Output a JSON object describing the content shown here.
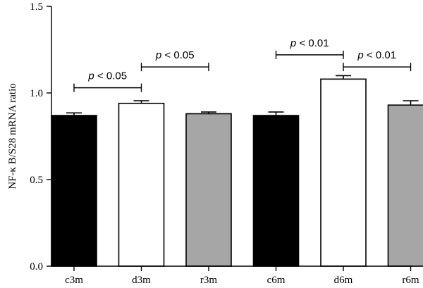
{
  "chart_data": {
    "type": "bar",
    "categories": [
      "c3m",
      "d3m",
      "r3m",
      "c6m",
      "d6m",
      "r6m"
    ],
    "values": [
      0.87,
      0.94,
      0.88,
      0.87,
      1.08,
      0.93
    ],
    "errors": [
      0.015,
      0.015,
      0.01,
      0.02,
      0.02,
      0.025
    ],
    "bar_colors": [
      "#000000",
      "#ffffff",
      "#a6a6a6",
      "#000000",
      "#ffffff",
      "#a6a6a6"
    ],
    "ylabel": "NF-κ B/S28 mRNA ratio",
    "ylim": [
      0,
      1.5
    ],
    "yticks": [
      "0.0",
      "0.5",
      "1.0",
      "1.5"
    ],
    "grid": false,
    "significance": [
      {
        "from": "c3m",
        "to": "d3m",
        "level": 1.03,
        "p_symbol": "p",
        "text": " < 0.05"
      },
      {
        "from": "d3m",
        "to": "r3m",
        "level": 1.15,
        "p_symbol": "p",
        "text": " < 0.05"
      },
      {
        "from": "c6m",
        "to": "d6m",
        "level": 1.22,
        "p_symbol": "p",
        "text": " < 0.01"
      },
      {
        "from": "d6m",
        "to": "r6m",
        "level": 1.15,
        "p_symbol": "p",
        "text": " < 0.01"
      }
    ]
  }
}
